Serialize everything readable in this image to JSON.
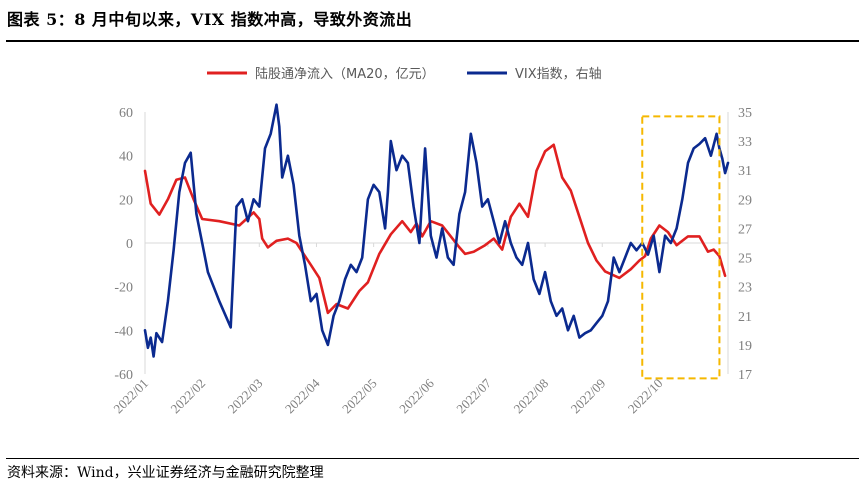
{
  "header": {
    "title": "图表 5：8 月中旬以来，VIX 指数冲高，导致外资流出"
  },
  "footer": {
    "source": "资料来源：Wind，兴业证券经济与金融研究院整理"
  },
  "colors": {
    "northbound": "#e02020",
    "vix": "#0b2a8f",
    "highlight": "#f5b800",
    "axis": "#d9d9d9",
    "tick_text": "#7f7f7f"
  },
  "chart_data": {
    "type": "line",
    "title": "",
    "legend_position": "top-center",
    "left_axis": {
      "ylim": [
        -60,
        60
      ],
      "ticks": [
        "60",
        "40",
        "20",
        "0",
        "-20",
        "-40",
        "-60"
      ]
    },
    "right_axis": {
      "ylim": [
        17,
        35
      ],
      "ticks": [
        "35",
        "33",
        "31",
        "29",
        "27",
        "25",
        "23",
        "21",
        "19",
        "17"
      ]
    },
    "x_ticks": [
      "2022/01",
      "2022/02",
      "2022/03",
      "2022/04",
      "2022/05",
      "2022/06",
      "2022/07",
      "2022/08",
      "2022/09",
      "2022/10"
    ],
    "x_range": [
      0,
      10.2
    ],
    "highlight_region": {
      "x_start": 8.7,
      "x_end": 10.05,
      "y_left_min": -62,
      "y_left_max": 58
    },
    "series": [
      {
        "name": "陆股通净流入（MA20，亿元）",
        "axis": "left",
        "x": [
          0,
          0.1,
          0.25,
          0.4,
          0.55,
          0.7,
          0.85,
          1.0,
          1.3,
          1.65,
          1.9,
          2.0,
          2.05,
          2.15,
          2.3,
          2.5,
          2.65,
          2.8,
          2.9,
          3.05,
          3.2,
          3.35,
          3.55,
          3.75,
          3.9,
          4.1,
          4.3,
          4.5,
          4.65,
          4.75,
          4.85,
          5.0,
          5.2,
          5.35,
          5.5,
          5.6,
          5.75,
          5.95,
          6.1,
          6.25,
          6.4,
          6.55,
          6.7,
          6.85,
          7.0,
          7.15,
          7.3,
          7.45,
          7.6,
          7.75,
          7.9,
          8.05,
          8.3,
          8.5,
          8.65,
          8.75,
          8.85,
          9.0,
          9.15,
          9.3,
          9.5,
          9.7,
          9.85,
          9.95,
          10.05,
          10.15
        ],
        "y": [
          33,
          18,
          13,
          20,
          29,
          30,
          20,
          11,
          10,
          8,
          14,
          11,
          2,
          -2,
          1,
          2,
          0,
          -6,
          -10,
          -16,
          -32,
          -28,
          -30,
          -22,
          -18,
          -5,
          4,
          10,
          5,
          9,
          3,
          10,
          8,
          3,
          -2,
          -5,
          -4,
          -1,
          2,
          -3,
          12,
          18,
          12,
          33,
          42,
          45,
          30,
          24,
          12,
          0,
          -8,
          -13,
          -16,
          -12,
          -8,
          -6,
          2,
          8,
          5,
          -1,
          3,
          3,
          -4,
          -3,
          -6,
          -15
        ],
        "color": "#e02020"
      },
      {
        "name": "VIX指数，右轴",
        "axis": "right",
        "x": [
          0,
          0.05,
          0.1,
          0.15,
          0.2,
          0.3,
          0.4,
          0.5,
          0.6,
          0.7,
          0.8,
          0.9,
          1.0,
          1.1,
          1.3,
          1.5,
          1.6,
          1.7,
          1.8,
          1.9,
          2.0,
          2.1,
          2.2,
          2.3,
          2.35,
          2.4,
          2.5,
          2.6,
          2.7,
          2.8,
          2.9,
          3.0,
          3.1,
          3.2,
          3.3,
          3.4,
          3.5,
          3.6,
          3.7,
          3.8,
          3.9,
          4.0,
          4.1,
          4.2,
          4.25,
          4.3,
          4.4,
          4.5,
          4.6,
          4.7,
          4.8,
          4.9,
          5.0,
          5.1,
          5.2,
          5.3,
          5.4,
          5.5,
          5.6,
          5.7,
          5.8,
          5.9,
          6.0,
          6.1,
          6.2,
          6.3,
          6.4,
          6.5,
          6.6,
          6.7,
          6.8,
          6.9,
          7.0,
          7.1,
          7.2,
          7.3,
          7.4,
          7.5,
          7.6,
          7.7,
          7.8,
          7.9,
          8.0,
          8.1,
          8.2,
          8.3,
          8.4,
          8.5,
          8.6,
          8.7,
          8.8,
          8.9,
          9.0,
          9.1,
          9.2,
          9.3,
          9.4,
          9.5,
          9.6,
          9.7,
          9.8,
          9.9,
          10.0,
          10.05,
          10.1,
          10.15,
          10.2
        ],
        "y": [
          20,
          18.8,
          19.5,
          18.2,
          19.8,
          19.2,
          22,
          25.5,
          29.5,
          31.5,
          32.2,
          28,
          26,
          24,
          22,
          20.2,
          28.5,
          29,
          27.5,
          29,
          28.5,
          32.5,
          33.5,
          35.5,
          34,
          30.5,
          32,
          30,
          26.5,
          24.5,
          22,
          22.5,
          20,
          19,
          21,
          22,
          23.5,
          24.5,
          24,
          25,
          29,
          30,
          29.5,
          27,
          29.5,
          33,
          31,
          32,
          31.5,
          28.5,
          26,
          32.5,
          26.5,
          25,
          27,
          25,
          24.5,
          28,
          29.5,
          33.5,
          31.5,
          28.5,
          29,
          27.5,
          26,
          27.5,
          26,
          25,
          24.5,
          26,
          23.5,
          22.5,
          24,
          22,
          21,
          21.5,
          20,
          21,
          19.5,
          19.8,
          20,
          20.5,
          21,
          22,
          25,
          24,
          25,
          26,
          25.5,
          26,
          25.2,
          26.5,
          24,
          26.5,
          26,
          27,
          29,
          31.5,
          32.5,
          32.8,
          33.2,
          32,
          33.5,
          32.5,
          31.8,
          30.8,
          31.5
        ],
        "color": "#0b2a8f"
      }
    ]
  }
}
